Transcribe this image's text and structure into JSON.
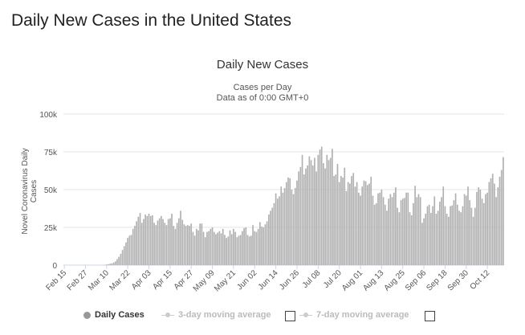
{
  "page": {
    "title": "Daily New Cases in the United States"
  },
  "chart_data": {
    "type": "bar",
    "title": "Daily New Cases",
    "subtitle_lines": [
      "Cases per Day",
      "Data as of 0:00 GMT+0"
    ],
    "ylabel": "Novel Coronavirus Daily Cases",
    "xlabel": "",
    "ylim": [
      0,
      100000
    ],
    "y_ticks": [
      0,
      25000,
      50000,
      75000,
      100000
    ],
    "y_tick_labels": [
      "0",
      "25k",
      "50k",
      "75k",
      "100k"
    ],
    "start_date": "Feb 15",
    "x_tick_labels": [
      "Feb 15",
      "Feb 27",
      "Mar 10",
      "Mar 22",
      "Apr 03",
      "Apr 15",
      "Apr 27",
      "May 09",
      "May 21",
      "Jun 02",
      "Jun 14",
      "Jun 26",
      "Jul 08",
      "Jul 20",
      "Aug 01",
      "Aug 13",
      "Aug 25",
      "Sep 06",
      "Sep 18",
      "Sep 30",
      "Oct 12"
    ],
    "x_tick_every_days": 12,
    "series": [
      {
        "name": "Daily Cases",
        "color": "#b0b0b0",
        "values": [
          0,
          0,
          0,
          0,
          0,
          0,
          0,
          0,
          0,
          0,
          0,
          0,
          0,
          0,
          0,
          0,
          0,
          0,
          0,
          0,
          0,
          0,
          100,
          200,
          400,
          600,
          900,
          1200,
          1700,
          2500,
          4000,
          5500,
          7500,
          10000,
          12500,
          15000,
          18000,
          19500,
          20000,
          24000,
          26000,
          29000,
          32000,
          34500,
          28000,
          30500,
          33500,
          32500,
          34000,
          32500,
          33000,
          28000,
          26500,
          29500,
          31000,
          32500,
          30500,
          28000,
          26500,
          30500,
          31000,
          34000,
          26000,
          24000,
          28000,
          31000,
          36000,
          30000,
          27000,
          26000,
          26500,
          26000,
          27500,
          22000,
          19500,
          24000,
          23000,
          27500,
          27500,
          22000,
          18500,
          22000,
          22500,
          24000,
          25000,
          22000,
          20500,
          21500,
          22500,
          21000,
          24000,
          20000,
          18000,
          19000,
          23000,
          20500,
          24000,
          22000,
          18500,
          19500,
          20000,
          22500,
          24500,
          25000,
          20000,
          19000,
          19500,
          26500,
          22500,
          22000,
          24000,
          28500,
          25500,
          25000,
          27000,
          29000,
          33500,
          36000,
          38000,
          41000,
          47500,
          44000,
          45500,
          52000,
          48000,
          51000,
          55000,
          58000,
          57500,
          50000,
          47000,
          51000,
          56000,
          62000,
          65000,
          73000,
          60000,
          64000,
          66000,
          72000,
          69500,
          66000,
          71000,
          62000,
          73000,
          76500,
          78500,
          67500,
          64000,
          73000,
          69500,
          71000,
          77000,
          59000,
          60000,
          67000,
          55000,
          59000,
          58000,
          64500,
          49000,
          55000,
          54000,
          59000,
          61000,
          52000,
          55000,
          48000,
          46000,
          52000,
          56000,
          55500,
          53000,
          54000,
          58500,
          46000,
          40000,
          41000,
          47500,
          48000,
          50000,
          45000,
          40000,
          36000,
          44000,
          47000,
          45000,
          48000,
          51500,
          38000,
          35000,
          43000,
          44000,
          44500,
          48000,
          48000,
          35000,
          33000,
          41000,
          52500,
          45000,
          47000,
          45000,
          28000,
          31000,
          34000,
          39000,
          40000,
          34500,
          39000,
          45500,
          34000,
          36000,
          42000,
          45000,
          52000,
          39000,
          34000,
          32000,
          39000,
          39500,
          43000,
          47500,
          40000,
          36000,
          35000,
          39000,
          47000,
          46000,
          52000,
          43000,
          38000,
          32000,
          38000,
          48500,
          51500,
          50000,
          44000,
          41000,
          47000,
          48000,
          55000,
          57500,
          60500,
          54000,
          45000,
          51500,
          58500,
          63000,
          71500
        ]
      },
      {
        "name": "3-day moving average",
        "color": "#cccccc",
        "enabled": false
      },
      {
        "name": "7-day moving average",
        "color": "#cccccc",
        "enabled": false
      }
    ]
  },
  "legend": {
    "daily_cases": "Daily Cases",
    "avg3": "3-day moving average",
    "avg7": "7-day moving average"
  }
}
